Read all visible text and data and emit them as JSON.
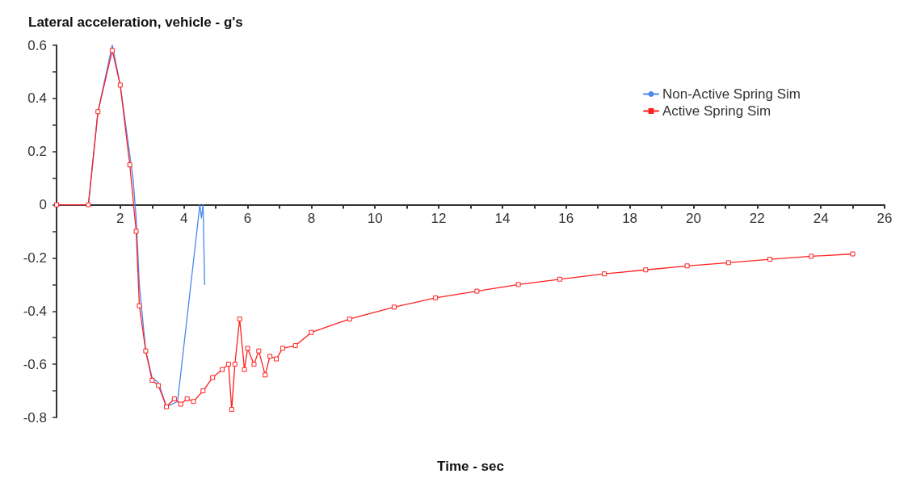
{
  "chart_data": {
    "type": "line",
    "title": "Lateral acceleration, vehicle - g's",
    "xlabel": "Time - sec",
    "xlim": [
      0,
      26
    ],
    "xticks": [
      2,
      4,
      6,
      8,
      10,
      12,
      14,
      16,
      18,
      20,
      22,
      24,
      26
    ],
    "ylim": [
      -0.8,
      0.6
    ],
    "yticks": [
      -0.8,
      -0.6,
      -0.4,
      -0.2,
      0,
      0.2,
      0.4,
      0.6
    ],
    "grid": false,
    "legend": "top right",
    "line_style": "solid",
    "series": [
      {
        "name": "Non-Active Spring Sim",
        "color": "#4a86f0",
        "marker": "none",
        "x": [
          0,
          1,
          1.3,
          1.75,
          2.0,
          2.4,
          2.5,
          2.6,
          2.8,
          3.0,
          3.2,
          3.45,
          3.8,
          4.5,
          4.55,
          4.6,
          4.65
        ],
        "values": [
          0,
          0,
          0.35,
          0.6,
          0.45,
          0.1,
          -0.05,
          -0.3,
          -0.55,
          -0.65,
          -0.67,
          -0.76,
          -0.74,
          0,
          -0.05,
          0,
          -0.3
        ]
      },
      {
        "name": "Active Spring Sim",
        "color": "#ff2020",
        "marker": "square",
        "x": [
          0,
          1,
          1.3,
          1.75,
          2.0,
          2.3,
          2.5,
          2.6,
          2.8,
          3.0,
          3.2,
          3.45,
          3.7,
          3.9,
          4.1,
          4.3,
          4.6,
          4.9,
          5.2,
          5.4,
          5.5,
          5.6,
          5.75,
          5.9,
          6.0,
          6.2,
          6.35,
          6.55,
          6.7,
          6.9,
          7.1,
          7.5,
          8,
          9.2,
          10.6,
          11.9,
          13.2,
          14.5,
          15.8,
          17.2,
          18.5,
          19.8,
          21.1,
          22.4,
          23.7,
          25
        ],
        "values": [
          0,
          0,
          0.35,
          0.58,
          0.45,
          0.15,
          -0.1,
          -0.38,
          -0.55,
          -0.66,
          -0.68,
          -0.76,
          -0.73,
          -0.75,
          -0.73,
          -0.74,
          -0.7,
          -0.65,
          -0.62,
          -0.6,
          -0.77,
          -0.6,
          -0.43,
          -0.62,
          -0.54,
          -0.6,
          -0.55,
          -0.64,
          -0.57,
          -0.58,
          -0.54,
          -0.53,
          -0.48,
          -0.43,
          -0.385,
          -0.35,
          -0.325,
          -0.3,
          -0.28,
          -0.26,
          -0.245,
          -0.23,
          -0.218,
          -0.205,
          -0.194,
          -0.185
        ]
      }
    ]
  }
}
